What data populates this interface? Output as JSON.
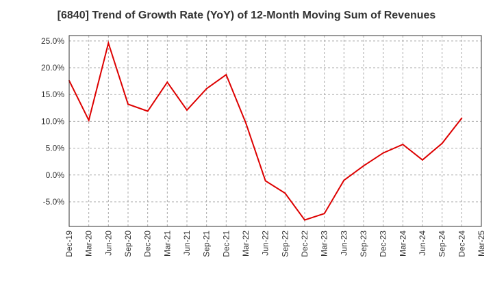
{
  "chart_data": {
    "type": "line",
    "title": "[6840]  Trend of Growth Rate (YoY) of 12-Month Moving Sum of Revenues",
    "xlabel": "",
    "ylabel": "",
    "x": [
      "Dec-19",
      "Mar-20",
      "Jun-20",
      "Sep-20",
      "Dec-20",
      "Mar-21",
      "Jun-21",
      "Sep-21",
      "Dec-21",
      "Mar-22",
      "Jun-22",
      "Sep-22",
      "Dec-22",
      "Mar-23",
      "Jun-23",
      "Sep-23",
      "Dec-23",
      "Mar-24",
      "Jun-24",
      "Sep-24",
      "Dec-24",
      "Mar-25"
    ],
    "x_tick_labels": [
      "Dec-19",
      "Mar-20",
      "Jun-20",
      "Sep-20",
      "Dec-20",
      "Mar-21",
      "Jun-21",
      "Sep-21",
      "Dec-21",
      "Mar-22",
      "Jun-22",
      "Sep-22",
      "Dec-22",
      "Mar-23",
      "Jun-23",
      "Sep-23",
      "Dec-23",
      "Mar-24",
      "Jun-24",
      "Sep-24",
      "Dec-24",
      "Mar-25"
    ],
    "series": [
      {
        "values": [
          17.6,
          10.2,
          24.6,
          13.2,
          11.9,
          17.3,
          12.1,
          16.1,
          18.7,
          9.7,
          -1.1,
          -3.4,
          -8.4,
          -7.2,
          -1.0,
          1.7,
          4.1,
          5.7,
          2.8,
          5.9,
          10.6,
          null
        ],
        "color": "#dd0000"
      }
    ],
    "ylim": [
      -9.6,
      26.0
    ],
    "y_ticks": [
      -5.0,
      0.0,
      5.0,
      10.0,
      15.0,
      20.0,
      25.0
    ],
    "y_tick_labels": [
      "-5.0%",
      "0.0%",
      "5.0%",
      "10.0%",
      "15.0%",
      "20.0%",
      "25.0%"
    ],
    "grid": true,
    "grid_style": "dashed",
    "legend": "none"
  }
}
